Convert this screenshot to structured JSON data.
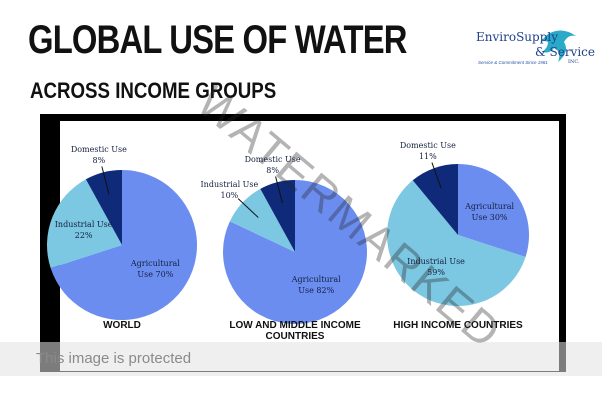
{
  "header": {
    "title": "GLOBAL USE OF WATER",
    "subtitle": "ACROSS INCOME GROUPS",
    "logo": {
      "name": "EnviroSupply",
      "name2": "& Service",
      "suffix": "INC.",
      "tagline": "Service & Commitment Since 1981"
    },
    "watermark": "WATERMARKED",
    "notice": "This image is protected"
  },
  "chart_data": [
    {
      "type": "pie",
      "title": "WORLD",
      "values": [
        70,
        22,
        8
      ],
      "value_labels": [
        "Agricultural Use 70%",
        "Industrial Use 22%",
        "Domestic Use 8%"
      ],
      "colors": [
        "#6b8df0",
        "#7cc7e2",
        "#0e2a78"
      ]
    },
    {
      "type": "pie",
      "title": "LOW AND MIDDLE INCOME COUNTRIES",
      "values": [
        82,
        10,
        8
      ],
      "value_labels": [
        "Agricultural Use 82%",
        "Industrial Use 10%",
        "Domestic Use 8%"
      ],
      "colors": [
        "#6b8df0",
        "#7cc7e2",
        "#0e2a78"
      ]
    },
    {
      "type": "pie",
      "title": "HIGH INCOME COUNTRIES",
      "values": [
        30,
        59,
        11
      ],
      "value_labels": [
        "Agricultural Use 30%",
        "Industrial Use 59%",
        "Domestic Use 11%"
      ],
      "colors": [
        "#6b8df0",
        "#7cc7e2",
        "#0e2a78"
      ]
    }
  ]
}
